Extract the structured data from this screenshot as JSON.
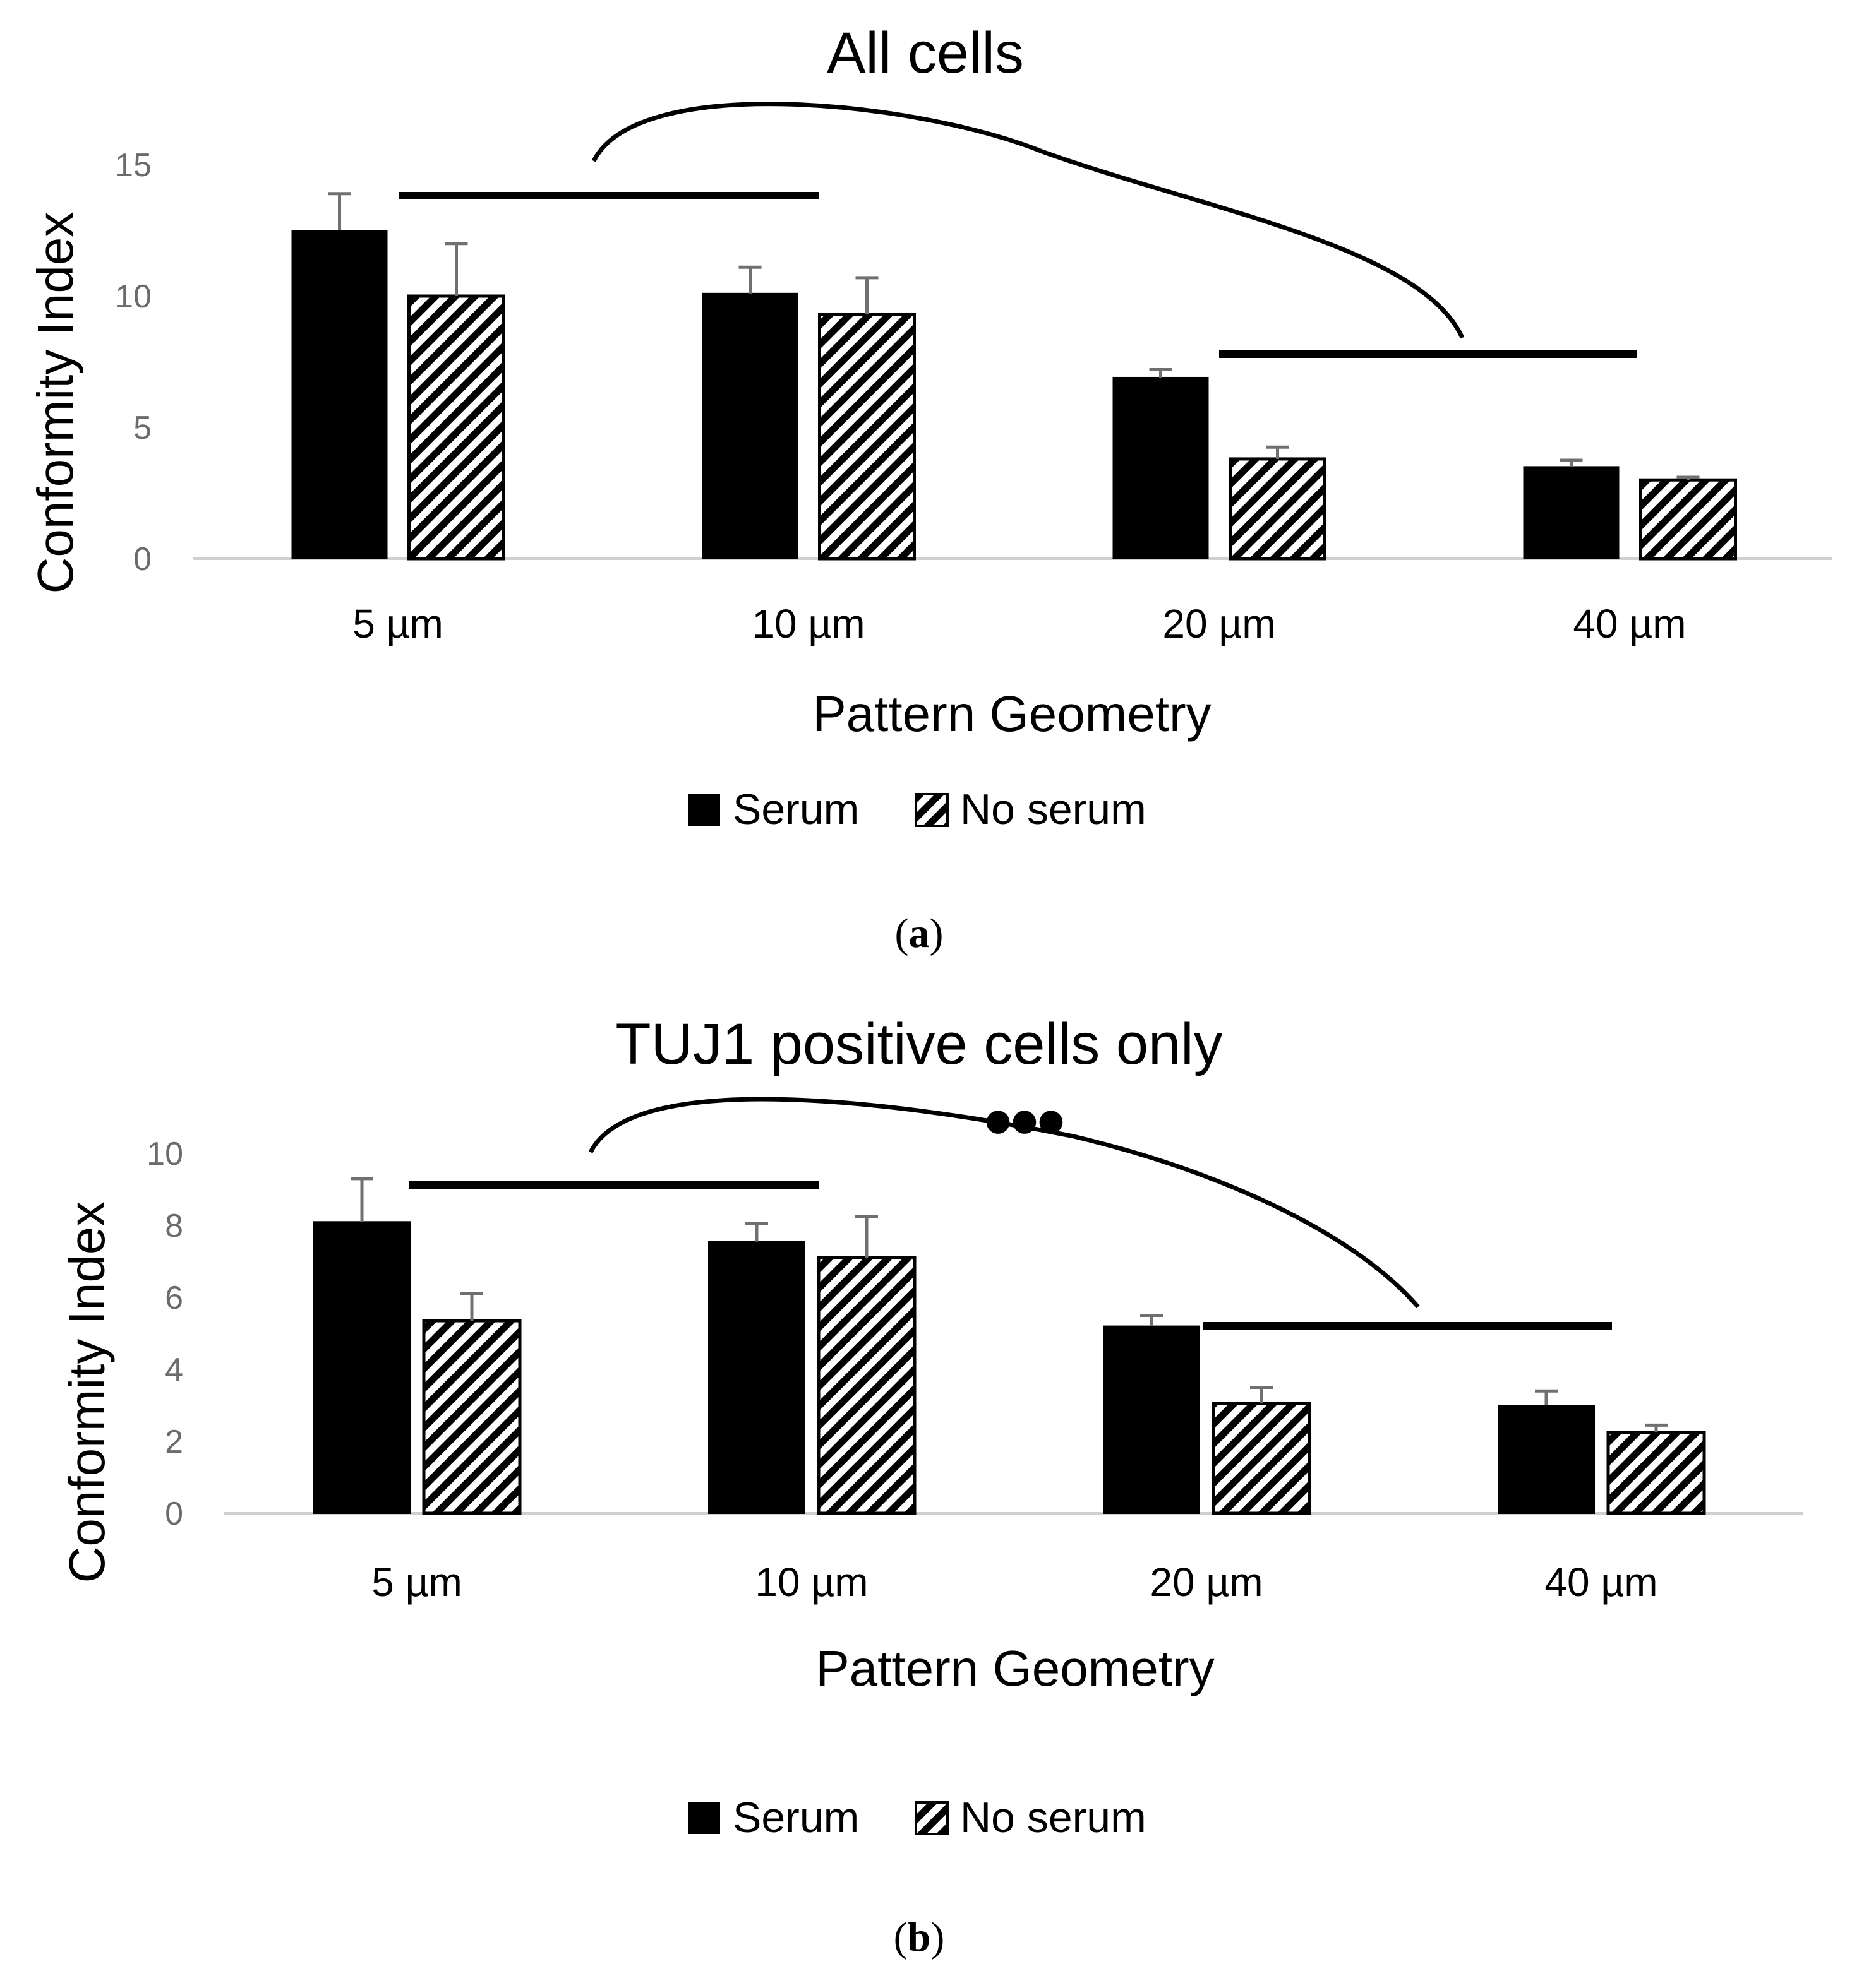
{
  "chart_data": [
    {
      "type": "bar",
      "title": "All cells",
      "xlabel": "Pattern Geometry",
      "ylabel": "Conformity Index",
      "categories": [
        "5 µm",
        "10 µm",
        "20 µm",
        "40 µm"
      ],
      "yticks": [
        "0",
        "5",
        "10",
        "15"
      ],
      "ylim": [
        0,
        15
      ],
      "series": [
        {
          "name": "Serum",
          "values": [
            12.5,
            10.1,
            6.9,
            3.5
          ],
          "errors": [
            1.4,
            1.0,
            0.3,
            0.25
          ],
          "fill": "solid",
          "color": "#000000"
        },
        {
          "name": "No serum",
          "values": [
            10.0,
            9.3,
            3.8,
            3.0
          ],
          "errors": [
            2.0,
            1.4,
            0.45,
            0.1
          ],
          "fill": "hatched",
          "color": "#000000"
        }
      ],
      "annotations": {
        "significance_lines": [
          [
            "5 µm",
            "10 µm"
          ],
          [
            "20 µm",
            "40 µm"
          ]
        ],
        "significance_arc": true,
        "marker": ""
      },
      "caption": {
        "open": "(",
        "letter": "a",
        "close": ")"
      },
      "legend_position": "bottom",
      "grid": false
    },
    {
      "type": "bar",
      "title": "TUJ1 positive cells only",
      "xlabel": "Pattern Geometry",
      "ylabel": "Conformity Index",
      "categories": [
        "5 µm",
        "10 µm",
        "20 µm",
        "40 µm"
      ],
      "yticks": [
        "0",
        "2",
        "4",
        "6",
        "8",
        "10"
      ],
      "ylim": [
        0,
        10
      ],
      "series": [
        {
          "name": "Serum",
          "values": [
            8.1,
            7.55,
            5.2,
            3.0
          ],
          "errors": [
            1.2,
            0.5,
            0.3,
            0.4
          ],
          "fill": "solid",
          "color": "#000000"
        },
        {
          "name": "No serum",
          "values": [
            5.35,
            7.1,
            3.05,
            2.25
          ],
          "errors": [
            0.75,
            1.15,
            0.45,
            0.2
          ],
          "fill": "hatched",
          "color": "#000000"
        }
      ],
      "annotations": {
        "significance_lines": [
          [
            "5 µm",
            "10 µm"
          ],
          [
            "20 µm",
            "40 µm"
          ]
        ],
        "significance_arc": true,
        "marker": "●●●"
      },
      "caption": {
        "open": "(",
        "letter": "b",
        "close": ")"
      },
      "legend_position": "bottom",
      "grid": false
    }
  ]
}
